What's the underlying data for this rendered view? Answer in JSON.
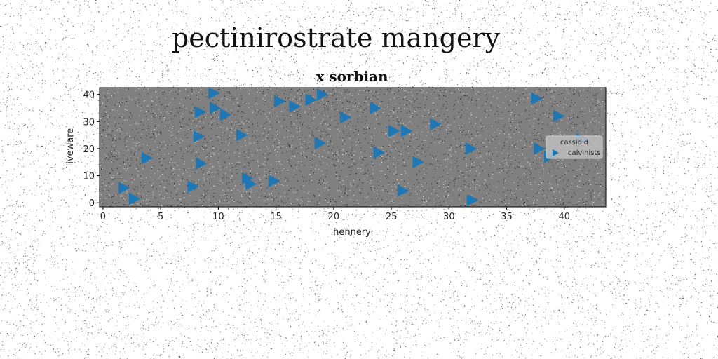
{
  "page_title": "pectinirostrate mangery",
  "chart_data": {
    "type": "scatter",
    "title": "x sorbian",
    "xlabel": "hennery",
    "ylabel": "liveware",
    "xlim": [
      -0.3,
      43.6
    ],
    "ylim": [
      -1.5,
      42.5
    ],
    "xticks": [
      0,
      5,
      10,
      15,
      20,
      25,
      30,
      35,
      40
    ],
    "yticks": [
      0,
      10,
      20,
      30,
      40
    ],
    "grid": false,
    "background_color": "#808080",
    "legend": {
      "title": "cassidid",
      "placement": "center-right"
    },
    "series": [
      {
        "name": "calvinists",
        "marker": "triangle-right",
        "color": "#1f77b4",
        "points": [
          {
            "x": 1.8,
            "y": 5.5
          },
          {
            "x": 2.7,
            "y": 1.5
          },
          {
            "x": 3.8,
            "y": 16.5
          },
          {
            "x": 7.8,
            "y": 6.0
          },
          {
            "x": 8.3,
            "y": 24.5
          },
          {
            "x": 8.4,
            "y": 33.5
          },
          {
            "x": 8.5,
            "y": 14.5
          },
          {
            "x": 9.6,
            "y": 40.5
          },
          {
            "x": 9.7,
            "y": 35.0
          },
          {
            "x": 10.6,
            "y": 32.5
          },
          {
            "x": 12.0,
            "y": 25.0
          },
          {
            "x": 12.5,
            "y": 9.0
          },
          {
            "x": 12.8,
            "y": 7.0
          },
          {
            "x": 14.8,
            "y": 8.0
          },
          {
            "x": 15.3,
            "y": 37.5
          },
          {
            "x": 16.6,
            "y": 35.5
          },
          {
            "x": 18.0,
            "y": 38.0
          },
          {
            "x": 18.8,
            "y": 22.0
          },
          {
            "x": 19.0,
            "y": 40.0
          },
          {
            "x": 21.0,
            "y": 31.5
          },
          {
            "x": 23.6,
            "y": 35.0
          },
          {
            "x": 23.9,
            "y": 18.5
          },
          {
            "x": 25.2,
            "y": 26.5
          },
          {
            "x": 26.0,
            "y": 4.5
          },
          {
            "x": 26.3,
            "y": 26.5
          },
          {
            "x": 27.3,
            "y": 15.0
          },
          {
            "x": 28.8,
            "y": 29.0
          },
          {
            "x": 31.9,
            "y": 20.0
          },
          {
            "x": 32.0,
            "y": 1.0
          },
          {
            "x": 37.6,
            "y": 38.5
          },
          {
            "x": 37.8,
            "y": 20.0
          },
          {
            "x": 38.7,
            "y": 17.0
          },
          {
            "x": 39.5,
            "y": 32.0
          },
          {
            "x": 41.5,
            "y": 23.5
          }
        ]
      }
    ]
  }
}
